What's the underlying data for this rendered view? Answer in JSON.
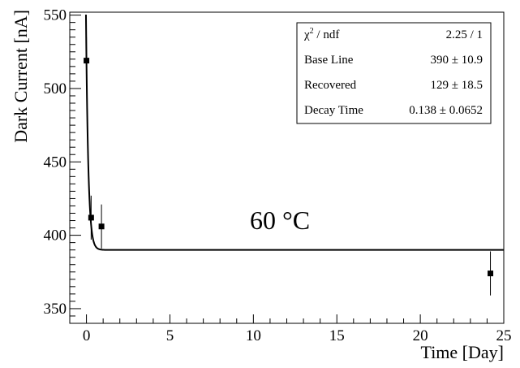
{
  "chart_data": {
    "type": "scatter",
    "xlabel": "Time [Day]",
    "ylabel": "Dark Current [nA]",
    "xlim": [
      -1,
      25
    ],
    "ylim": [
      340,
      552
    ],
    "x_ticks": [
      0,
      5,
      10,
      15,
      20,
      25
    ],
    "y_ticks": [
      350,
      400,
      450,
      500,
      550
    ],
    "grid": false,
    "points": [
      {
        "x": 0.0,
        "y": 519,
        "err": 16
      },
      {
        "x": 0.28,
        "y": 412,
        "err": 15
      },
      {
        "x": 0.9,
        "y": 406,
        "err": 15
      },
      {
        "x": 24.2,
        "y": 374,
        "err": 15
      }
    ],
    "fit": {
      "function": "exponential",
      "baseline": 390,
      "recovered": 129,
      "decay_time": 0.138,
      "x_range": [
        -1,
        25
      ]
    },
    "annotation": "60 °C",
    "stats_box": {
      "position": "top-right",
      "rows": [
        {
          "label": "χ² / ndf",
          "value": "2.25 / 1"
        },
        {
          "label": "Base Line",
          "value": "390 ± 10.9"
        },
        {
          "label": "Recovered",
          "value": "129 ± 18.5"
        },
        {
          "label": "Decay Time",
          "value": "0.138 ± 0.0652"
        }
      ]
    }
  }
}
